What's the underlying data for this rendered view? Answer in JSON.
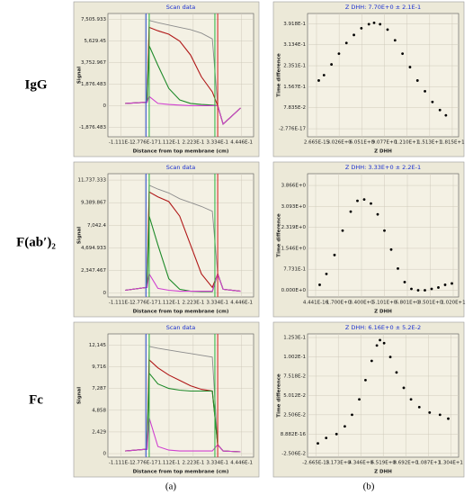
{
  "figure": {
    "rows": [
      "IgG",
      "F(ab′)₂",
      "Fc"
    ],
    "columns": [
      "(a)",
      "(b)"
    ]
  },
  "chart_data": [
    {
      "type": "line",
      "title": "Scan data",
      "xlabel": "Distance from top membrane (cm)",
      "ylabel": "Signal",
      "x": [
        -0.09,
        0.01,
        0.02,
        0.06,
        0.11,
        0.16,
        0.21,
        0.26,
        0.31,
        0.335,
        0.36,
        0.44
      ],
      "series": [
        {
          "color": "#8c8c8c",
          "values": [
            200,
            300,
            7400,
            7200,
            7000,
            6800,
            6600,
            6300,
            5800,
            0,
            -1600,
            -200
          ]
        },
        {
          "color": "#b01818",
          "values": [
            200,
            300,
            6800,
            6500,
            6200,
            5600,
            4400,
            2500,
            1200,
            0,
            -1600,
            -200
          ]
        },
        {
          "color": "#1f8a2a",
          "values": [
            200,
            300,
            5200,
            3500,
            1500,
            500,
            200,
            100,
            50,
            0,
            -1600,
            -200
          ]
        },
        {
          "color": "#d040d0",
          "values": [
            200,
            300,
            800,
            200,
            100,
            50,
            0,
            0,
            0,
            0,
            -1600,
            -200
          ]
        }
      ],
      "markers": [
        {
          "x": 0.005,
          "color": "#2a4fd6"
        },
        {
          "x": 0.02,
          "color": "#27b23c"
        },
        {
          "x": 0.322,
          "color": "#27b23c"
        },
        {
          "x": 0.335,
          "color": "#d62020"
        }
      ],
      "xlim": [
        -0.17,
        0.5
      ],
      "ylim": [
        -2700,
        8000
      ],
      "xticks": [
        {
          "value": -0.1111,
          "label": "-1.111E-1"
        },
        {
          "value": 2.776e-17,
          "label": "2.776E-17"
        },
        {
          "value": 0.1112,
          "label": "1.112E-1"
        },
        {
          "value": 0.2223,
          "label": "2.223E-1"
        },
        {
          "value": 0.3334,
          "label": "3.334E-1"
        },
        {
          "value": 0.4446,
          "label": "4.446E-1"
        }
      ],
      "yticks": [
        {
          "value": -1876.483,
          "label": "-1,876.483"
        },
        0,
        {
          "value": 1876.483,
          "label": "1,876.483"
        },
        {
          "value": 3752.967,
          "label": "3,752.967"
        },
        {
          "value": 5629.45,
          "label": "5,629.45"
        },
        {
          "value": 7505.933,
          "label": "7,505.933"
        }
      ]
    },
    {
      "type": "scatter",
      "title": "Z DHH: 7.70E+0 ± 2.1E-1",
      "xlabel": "Z DHH",
      "ylabel": "Time difference",
      "x": [
        0.3,
        1,
        2,
        3,
        4,
        5,
        6,
        7,
        7.7,
        8.5,
        9.5,
        10.5,
        11.5,
        12.5,
        13.5,
        14.5,
        15.5,
        16.5,
        17.3
      ],
      "series": [
        {
          "color": "#000000",
          "values": [
            0.18,
            0.2,
            0.24,
            0.28,
            0.32,
            0.35,
            0.375,
            0.39,
            0.395,
            0.39,
            0.37,
            0.33,
            0.28,
            0.23,
            0.18,
            0.14,
            0.1,
            0.07,
            0.05
          ]
        }
      ],
      "xlim": [
        -1.2,
        19
      ],
      "ylim": [
        -0.03,
        0.43
      ],
      "xticks": [
        {
          "value": 2.665e-15,
          "label": "2.665E-15"
        },
        {
          "value": 3.026,
          "label": "3.026E+0"
        },
        {
          "value": 6.051,
          "label": "6.051E+0"
        },
        {
          "value": 9.077,
          "label": "9.077E+0"
        },
        {
          "value": 12.1,
          "label": "1.210E+1"
        },
        {
          "value": 15.13,
          "label": "1.513E+1"
        },
        {
          "value": 18.15,
          "label": "1.815E+1"
        }
      ],
      "yticks": [
        {
          "value": -2.776e-17,
          "label": "-2.776E-17"
        },
        {
          "value": 0.07835,
          "label": "7.835E-2"
        },
        {
          "value": 0.1567,
          "label": "1.567E-1"
        },
        {
          "value": 0.2351,
          "label": "2.351E-1"
        },
        {
          "value": 0.3134,
          "label": "3.134E-1"
        },
        {
          "value": 0.3918,
          "label": "3.918E-1"
        }
      ]
    },
    {
      "type": "line",
      "title": "Scan data",
      "xlabel": "Distance from top membrane (cm)",
      "ylabel": "Signal",
      "x": [
        -0.09,
        0.01,
        0.02,
        0.06,
        0.11,
        0.16,
        0.21,
        0.26,
        0.31,
        0.335,
        0.36,
        0.44
      ],
      "series": [
        {
          "color": "#8c8c8c",
          "values": [
            300,
            600,
            11200,
            10800,
            10400,
            9800,
            9400,
            9000,
            8500,
            2000,
            400,
            200
          ]
        },
        {
          "color": "#b01818",
          "values": [
            300,
            600,
            10500,
            10000,
            9500,
            8000,
            5000,
            2000,
            600,
            2000,
            400,
            200
          ]
        },
        {
          "color": "#1f8a2a",
          "values": [
            300,
            600,
            8000,
            5000,
            1500,
            400,
            200,
            150,
            150,
            2000,
            400,
            200
          ]
        },
        {
          "color": "#d040d0",
          "values": [
            300,
            600,
            2000,
            500,
            300,
            200,
            200,
            200,
            200,
            2000,
            400,
            200
          ]
        }
      ],
      "markers": [
        {
          "x": 0.005,
          "color": "#2a4fd6"
        },
        {
          "x": 0.02,
          "color": "#27b23c"
        },
        {
          "x": 0.322,
          "color": "#27b23c"
        },
        {
          "x": 0.335,
          "color": "#d62020"
        }
      ],
      "xlim": [
        -0.17,
        0.5
      ],
      "ylim": [
        -400,
        12400
      ],
      "xticks": [
        {
          "value": -0.1111,
          "label": "-1.111E-1"
        },
        {
          "value": 2.776e-17,
          "label": "2.776E-17"
        },
        {
          "value": 0.1112,
          "label": "1.112E-1"
        },
        {
          "value": 0.2223,
          "label": "2.223E-1"
        },
        {
          "value": 0.3334,
          "label": "3.334E-1"
        },
        {
          "value": 0.4446,
          "label": "4.446E-1"
        }
      ],
      "yticks": [
        0,
        {
          "value": 2347.467,
          "label": "2,347.467"
        },
        {
          "value": 4694.933,
          "label": "4,694.933"
        },
        {
          "value": 7042.4,
          "label": "7,042.4"
        },
        {
          "value": 9389.867,
          "label": "9,389.867"
        },
        {
          "value": 11737.333,
          "label": "11,737.333"
        }
      ]
    },
    {
      "type": "scatter",
      "title": "Z DHH: 3.33E+0 ± 2.2E-1",
      "xlabel": "Z DHH",
      "ylabel": "Time difference",
      "x": [
        0.3,
        0.8,
        1.4,
        2,
        2.6,
        3.1,
        3.6,
        4.1,
        4.6,
        5.1,
        5.6,
        6.1,
        6.6,
        7.1,
        7.6,
        8.1,
        8.6,
        9.1,
        9.6,
        10.1
      ],
      "series": [
        {
          "color": "#000000",
          "values": [
            0.2,
            0.6,
            1.3,
            2.2,
            2.9,
            3.3,
            3.35,
            3.2,
            2.8,
            2.2,
            1.5,
            0.8,
            0.3,
            0.05,
            0,
            0,
            0.05,
            0.1,
            0.2,
            0.25
          ]
        }
      ],
      "xlim": [
        -0.6,
        10.6
      ],
      "ylim": [
        -0.25,
        4.3
      ],
      "xticks": [
        {
          "value": 4.441e-16,
          "label": "4.441E-16"
        },
        {
          "value": 1.7,
          "label": "1.700E+0"
        },
        {
          "value": 3.4,
          "label": "3.400E+0"
        },
        {
          "value": 5.101,
          "label": "5.101E+0"
        },
        {
          "value": 6.801,
          "label": "6.801E+0"
        },
        {
          "value": 8.501,
          "label": "8.501E+0"
        },
        {
          "value": 10.2,
          "label": "1.020E+1"
        }
      ],
      "yticks": [
        {
          "value": 0,
          "label": "0.000E+0"
        },
        {
          "value": 0.7731,
          "label": "7.731E-1"
        },
        {
          "value": 1.546,
          "label": "1.546E+0"
        },
        {
          "value": 2.319,
          "label": "2.319E+0"
        },
        {
          "value": 3.093,
          "label": "3.093E+0"
        },
        {
          "value": 3.866,
          "label": "3.866E+0"
        }
      ]
    },
    {
      "type": "line",
      "title": "Scan data",
      "xlabel": "Distance from top membrane (cm)",
      "ylabel": "Signal",
      "x": [
        -0.09,
        0.01,
        0.02,
        0.06,
        0.11,
        0.16,
        0.21,
        0.26,
        0.31,
        0.335,
        0.36,
        0.44
      ],
      "series": [
        {
          "color": "#8c8c8c",
          "values": [
            300,
            500,
            12000,
            11800,
            11600,
            11400,
            11200,
            11000,
            10800,
            1000,
            300,
            200
          ]
        },
        {
          "color": "#b01818",
          "values": [
            300,
            500,
            10500,
            9600,
            8800,
            8200,
            7600,
            7200,
            7000,
            1000,
            300,
            200
          ]
        },
        {
          "color": "#1f8a2a",
          "values": [
            300,
            500,
            9000,
            7800,
            7300,
            7100,
            7000,
            7000,
            7000,
            1000,
            300,
            200
          ]
        },
        {
          "color": "#d040d0",
          "values": [
            300,
            500,
            4000,
            800,
            400,
            300,
            300,
            300,
            300,
            1000,
            300,
            200
          ]
        }
      ],
      "markers": [
        {
          "x": 0.005,
          "color": "#2a4fd6"
        },
        {
          "x": 0.02,
          "color": "#27b23c"
        },
        {
          "x": 0.322,
          "color": "#27b23c"
        },
        {
          "x": 0.335,
          "color": "#d62020"
        }
      ],
      "xlim": [
        -0.17,
        0.5
      ],
      "ylim": [
        -400,
        13400
      ],
      "xticks": [
        {
          "value": -0.1111,
          "label": "-1.111E-1"
        },
        {
          "value": 2.776e-17,
          "label": "2.776E-17"
        },
        {
          "value": 0.1112,
          "label": "1.112E-1"
        },
        {
          "value": 0.2223,
          "label": "2.223E-1"
        },
        {
          "value": 0.3334,
          "label": "3.334E-1"
        },
        {
          "value": 0.4446,
          "label": "4.446E-1"
        }
      ],
      "yticks": [
        0,
        {
          "value": 2429,
          "label": "2,429"
        },
        {
          "value": 4858,
          "label": "4,858"
        },
        {
          "value": 7287,
          "label": "7,287"
        },
        {
          "value": 9716,
          "label": "9,716"
        },
        {
          "value": 12145,
          "label": "12,145"
        }
      ]
    },
    {
      "type": "scatter",
      "title": "Z DHH: 6.16E+0 ± 5.2E-2",
      "xlabel": "Z DHH",
      "ylabel": "Time difference",
      "x": [
        0.2,
        1,
        2,
        2.8,
        3.5,
        4.2,
        4.8,
        5.4,
        5.9,
        6.2,
        6.6,
        7.2,
        7.8,
        8.5,
        9.2,
        10,
        11,
        12,
        12.8
      ],
      "series": [
        {
          "color": "#000000",
          "values": [
            -0.012,
            -0.005,
            0,
            0.01,
            0.025,
            0.045,
            0.07,
            0.095,
            0.115,
            0.122,
            0.118,
            0.1,
            0.08,
            0.06,
            0.045,
            0.035,
            0.028,
            0.025,
            0.02
          ]
        }
      ],
      "xlim": [
        -0.8,
        13.8
      ],
      "ylim": [
        -0.03,
        0.13
      ],
      "xticks": [
        {
          "value": -2.665e-15,
          "label": "-2.665E-15"
        },
        {
          "value": 2.173,
          "label": "2.173E+0"
        },
        {
          "value": 4.346,
          "label": "4.346E+0"
        },
        {
          "value": 6.519,
          "label": "6.519E+0"
        },
        {
          "value": 8.692,
          "label": "8.692E+0"
        },
        {
          "value": 10.87,
          "label": "1.087E+1"
        },
        {
          "value": 13.04,
          "label": "1.304E+1"
        }
      ],
      "yticks": [
        {
          "value": -0.02506,
          "label": "-2.506E-2"
        },
        {
          "value": 8.882e-16,
          "label": "8.882E-16"
        },
        {
          "value": 0.02506,
          "label": "2.506E-2"
        },
        {
          "value": 0.05012,
          "label": "5.012E-2"
        },
        {
          "value": 0.07518,
          "label": "7.518E-2"
        },
        {
          "value": 0.1002,
          "label": "1.002E-1"
        },
        {
          "value": 0.1253,
          "label": "1.253E-1"
        }
      ]
    }
  ]
}
